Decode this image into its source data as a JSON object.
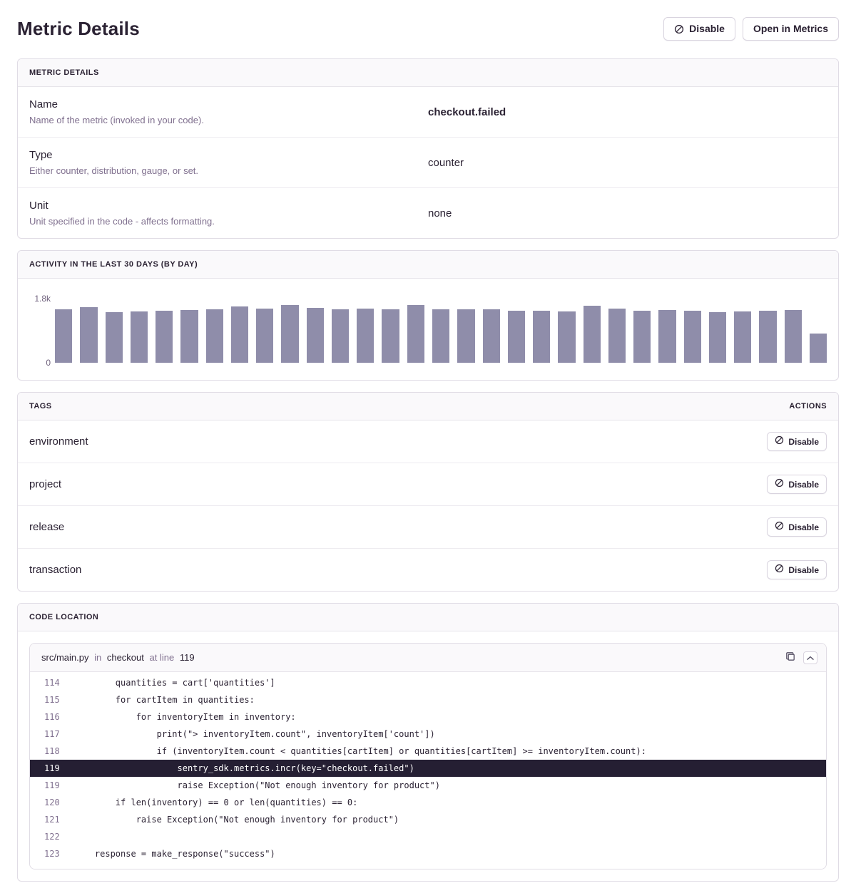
{
  "page_title": "Metric Details",
  "header": {
    "disable_label": "Disable",
    "disable_icon": "circle-slash-icon",
    "open_in_metrics_label": "Open in Metrics"
  },
  "metric_details": {
    "title": "METRIC DETAILS",
    "rows": [
      {
        "label": "Name",
        "description": "Name of the metric (invoked in your code).",
        "value": "checkout.failed",
        "strong": true
      },
      {
        "label": "Type",
        "description": "Either counter, distribution, gauge, or set.",
        "value": "counter",
        "strong": false
      },
      {
        "label": "Unit",
        "description": "Unit specified in the code - affects formatting.",
        "value": "none",
        "strong": false
      }
    ]
  },
  "activity": {
    "title": "ACTIVITY IN THE LAST 30 DAYS (BY DAY)",
    "y_max_label": "1.8k",
    "y_min_label": "0"
  },
  "chart_data": {
    "type": "bar",
    "title": "ACTIVITY IN THE LAST 30 DAYS (BY DAY)",
    "xlabel": "",
    "ylabel": "",
    "ylim": [
      0,
      1800
    ],
    "y_tick_labels": [
      "0",
      "1.8k"
    ],
    "grid": false,
    "legend": false,
    "bar_color": "#8f8daa",
    "values": [
      1490,
      1550,
      1420,
      1440,
      1460,
      1470,
      1490,
      1580,
      1510,
      1620,
      1540,
      1490,
      1520,
      1500,
      1620,
      1490,
      1500,
      1490,
      1460,
      1450,
      1430,
      1590,
      1510,
      1460,
      1470,
      1450,
      1420,
      1440,
      1460,
      1480,
      810
    ]
  },
  "tags": {
    "title": "TAGS",
    "actions_label": "ACTIONS",
    "disable_label": "Disable",
    "disable_icon": "circle-slash-icon",
    "items": [
      {
        "label": "environment"
      },
      {
        "label": "project"
      },
      {
        "label": "release"
      },
      {
        "label": "transaction"
      }
    ]
  },
  "code_location": {
    "title": "CODE LOCATION",
    "file": "src/main.py",
    "in_word": "in",
    "function": "checkout",
    "at_line_word": "at line",
    "line": "119",
    "icons": {
      "copy": "copy-icon",
      "collapse": "chevron-up-icon"
    },
    "lines": [
      {
        "num": "114",
        "code": "        quantities = cart['quantities']",
        "highlight": false
      },
      {
        "num": "115",
        "code": "        for cartItem in quantities:",
        "highlight": false
      },
      {
        "num": "116",
        "code": "            for inventoryItem in inventory:",
        "highlight": false
      },
      {
        "num": "117",
        "code": "                print(\"> inventoryItem.count\", inventoryItem['count'])",
        "highlight": false
      },
      {
        "num": "118",
        "code": "                if (inventoryItem.count < quantities[cartItem] or quantities[cartItem] >= inventoryItem.count):",
        "highlight": false
      },
      {
        "num": "119",
        "code": "                    sentry_sdk.metrics.incr(key=\"checkout.failed\")",
        "highlight": true
      },
      {
        "num": "119",
        "code": "                    raise Exception(\"Not enough inventory for product\")",
        "highlight": false
      },
      {
        "num": "120",
        "code": "        if len(inventory) == 0 or len(quantities) == 0:",
        "highlight": false
      },
      {
        "num": "121",
        "code": "            raise Exception(\"Not enough inventory for product\")",
        "highlight": false
      },
      {
        "num": "122",
        "code": "",
        "highlight": false
      },
      {
        "num": "123",
        "code": "    response = make_response(\"success\")",
        "highlight": false
      }
    ]
  }
}
